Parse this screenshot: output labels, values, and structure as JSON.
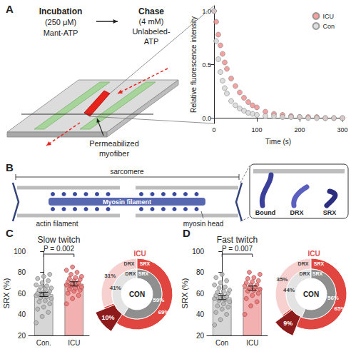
{
  "panel_labels": [
    "A",
    "B",
    "C",
    "D"
  ],
  "diagram_a": {
    "incubation": [
      "Incubation",
      "(250 μM)",
      "Mant-ATP"
    ],
    "chase": [
      "Chase",
      "(4 mM)",
      "Unlabeled-",
      "ATP"
    ],
    "fiber_label": [
      "Permeabilized",
      "myofiber"
    ]
  },
  "diagram_b": {
    "sarcomere": "sarcomere",
    "myosin_filament": "Myosin filament",
    "actin_filament": "actin filament",
    "myosin_head": "myosin head",
    "head_states": [
      "Bound",
      "DRX",
      "SRX"
    ]
  },
  "chart_data": [
    {
      "type": "scatter",
      "marker": "circle",
      "x_label": "Time (s)",
      "y_label": "Relative fluorescence intensity",
      "x": [
        0,
        5,
        10,
        15,
        20,
        25,
        30,
        40,
        50,
        60,
        70,
        80,
        90,
        100,
        120,
        140,
        160,
        180,
        200,
        220,
        240,
        260,
        280,
        300
      ],
      "series": [
        {
          "name": "ICU",
          "color": "#f08a8a",
          "values": [
            1.0,
            0.9,
            0.78,
            0.68,
            0.6,
            0.52,
            0.46,
            0.37,
            0.3,
            0.24,
            0.19,
            0.15,
            0.12,
            0.1,
            0.06,
            0.04,
            0.03,
            0.02,
            0.01,
            0.01,
            0.01,
            0.0,
            0.0,
            0.0
          ]
        },
        {
          "name": "Con",
          "color": "#d4d4d4",
          "values": [
            1.0,
            0.72,
            0.55,
            0.43,
            0.35,
            0.28,
            0.23,
            0.16,
            0.12,
            0.09,
            0.07,
            0.05,
            0.04,
            0.03,
            0.02,
            0.02,
            0.01,
            0.01,
            0.01,
            0.0,
            0.0,
            0.0,
            0.0,
            0.0
          ]
        }
      ],
      "xlim": [
        0,
        300
      ],
      "xticks": [
        0,
        100,
        200,
        300
      ],
      "ylim": [
        -0.05,
        1.05
      ],
      "yticks": [
        {
          "value": 0,
          "label": "0.0"
        },
        {
          "value": 0.5,
          "label": "0.5"
        },
        {
          "value": 1,
          "label": "1.0"
        }
      ],
      "legend": "upper right",
      "grid": false
    },
    {
      "type": "bar",
      "title": "Slow twitch",
      "y_label": "SRX (%)",
      "categories": [
        "Con.",
        "ICU"
      ],
      "values": [
        59,
        69
      ],
      "errors": [
        2,
        2
      ],
      "points": [
        [
          32,
          38,
          42,
          45,
          47,
          50,
          52,
          53,
          55,
          56,
          57,
          58,
          58,
          60,
          60,
          61,
          62,
          63,
          64,
          65,
          66,
          67,
          68,
          70,
          72,
          74,
          76,
          78
        ],
        [
          50,
          55,
          58,
          60,
          62,
          63,
          64,
          65,
          66,
          67,
          68,
          68,
          69,
          70,
          71,
          72,
          73,
          74,
          75,
          76,
          78,
          80,
          82,
          85
        ]
      ],
      "colors": [
        "#d6d6d6",
        "#f3b0b0"
      ],
      "ylim": [
        20,
        100
      ],
      "yticks": [
        20,
        40,
        60,
        80,
        100
      ],
      "annotation": "P = 0.002",
      "grid": false
    },
    {
      "type": "pie",
      "categories": [
        "DRX",
        "SRX"
      ],
      "series": [
        {
          "name": "CON",
          "values": [
            41,
            59
          ],
          "value_labels": [
            "41%",
            "59%"
          ],
          "colors": [
            "#e3e3e3",
            "#8f8f8f"
          ]
        },
        {
          "name": "ICU",
          "values": [
            31,
            69
          ],
          "value_labels": [
            "31%",
            "69%"
          ],
          "colors": [
            "#f7d0d0",
            "#e0463f"
          ]
        }
      ],
      "difference": {
        "value": 10,
        "value_label": "10%",
        "color": "#8e1b1b"
      },
      "data_labels": true
    },
    {
      "type": "bar",
      "title": "Fast twitch",
      "y_label": "SRX (%)",
      "categories": [
        "Con",
        "ICU"
      ],
      "values": [
        56,
        65
      ],
      "errors": [
        2,
        2
      ],
      "points": [
        [
          30,
          35,
          40,
          42,
          45,
          47,
          48,
          50,
          52,
          53,
          54,
          55,
          56,
          57,
          58,
          58,
          60,
          61,
          62,
          63,
          65,
          66,
          68,
          70,
          72,
          75,
          78
        ],
        [
          40,
          48,
          52,
          55,
          58,
          60,
          62,
          63,
          64,
          65,
          66,
          67,
          68,
          68,
          70,
          71,
          72,
          74,
          75,
          78,
          80
        ]
      ],
      "colors": [
        "#d6d6d6",
        "#f3b0b0"
      ],
      "ylim": [
        20,
        100
      ],
      "yticks": [
        20,
        40,
        60,
        80,
        100
      ],
      "annotation": "P = 0.007",
      "grid": false
    },
    {
      "type": "pie",
      "categories": [
        "DRX",
        "SRX"
      ],
      "series": [
        {
          "name": "CON",
          "values": [
            44,
            56
          ],
          "value_labels": [
            "44%",
            "56%"
          ],
          "colors": [
            "#e3e3e3",
            "#8f8f8f"
          ]
        },
        {
          "name": "ICU",
          "values": [
            35,
            65
          ],
          "value_labels": [
            "35%",
            "65%"
          ],
          "colors": [
            "#f7d0d0",
            "#e0463f"
          ]
        }
      ],
      "difference": {
        "value": 9,
        "value_label": "9%",
        "color": "#8e1b1b"
      },
      "data_labels": true
    }
  ]
}
